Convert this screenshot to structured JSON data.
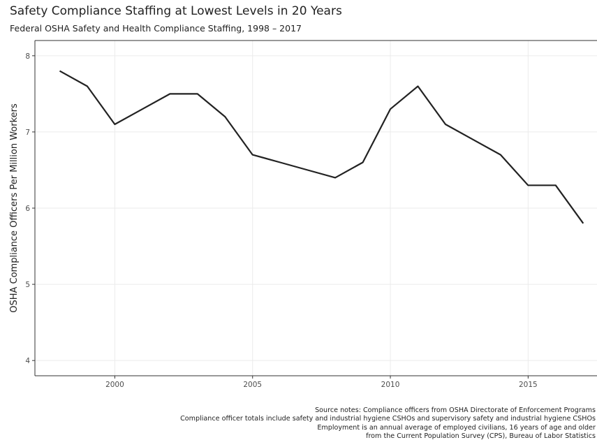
{
  "chart_data": {
    "type": "line",
    "title": "Safety Compliance Staffing at Lowest Levels in 20 Years",
    "subtitle": "Federal OSHA Safety and Health Compliance Staffing, 1998 – 2017",
    "xlabel": "",
    "ylabel": "OSHA Compliance Officers Per Million Workers",
    "xlim": [
      1997.1,
      2017.5
    ],
    "ylim": [
      3.8,
      8.2
    ],
    "x_ticks": [
      2000,
      2005,
      2010,
      2015
    ],
    "y_ticks": [
      4,
      5,
      6,
      7,
      8
    ],
    "grid": true,
    "legend": "none",
    "series": [
      {
        "x": [
          1998,
          1999,
          2000,
          2001,
          2002,
          2003,
          2004,
          2005,
          2006,
          2007,
          2008,
          2009,
          2010,
          2011,
          2012,
          2013,
          2014,
          2015,
          2016,
          2017
        ],
        "values": [
          7.8,
          7.6,
          7.1,
          7.3,
          7.5,
          7.5,
          7.2,
          6.7,
          6.6,
          6.5,
          6.4,
          6.6,
          7.3,
          7.6,
          7.1,
          6.9,
          6.7,
          6.3,
          6.3,
          5.8
        ]
      }
    ],
    "source_notes": [
      "Source notes: Compliance officers from OSHA Directorate of Enforcement Programs",
      "Compliance officer totals include safety and industrial hygiene CSHOs and supervisory safety and industrial hygiene CSHOs",
      "Employment is an annual average of employed civilians, 16 years of age and older",
      "from the Current Population Survey (CPS), Bureau of Labor Statistics"
    ]
  },
  "colors": {
    "line": "#222222",
    "grid": "#ebebeb",
    "axis": "#333333",
    "text": "#222222"
  }
}
